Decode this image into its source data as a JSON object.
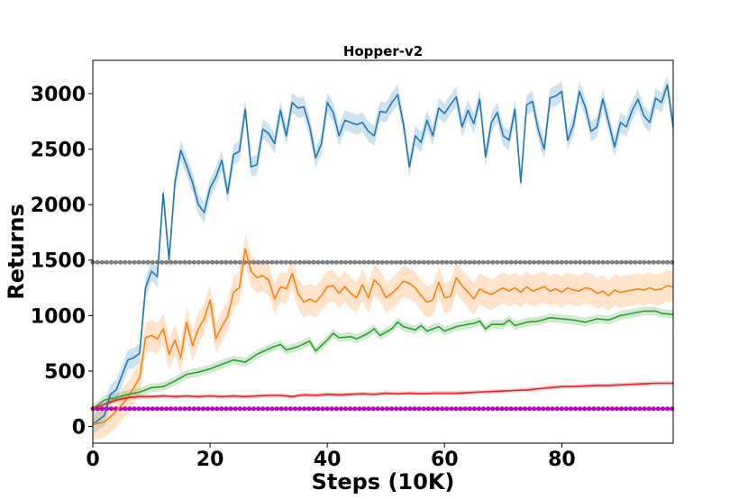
{
  "chart_data": {
    "type": "line",
    "title": "Hopper-v2",
    "xlabel": "Steps (10K)",
    "ylabel": "Returns",
    "xlim": [
      0,
      99
    ],
    "ylim": [
      -150,
      3300
    ],
    "xticks": [
      0,
      20,
      40,
      60,
      80
    ],
    "yticks": [
      0,
      500,
      1000,
      1500,
      2000,
      2500,
      3000
    ],
    "grid": false,
    "legend": null,
    "reference_lines": [
      {
        "name": "gray-baseline",
        "y": 1480,
        "color": "#7f7f7f"
      },
      {
        "name": "magenta-baseline",
        "y": 160,
        "color": "#bf00bf"
      }
    ],
    "series": [
      {
        "name": "blue",
        "color": "#1f77b4",
        "shade": 90,
        "keypoints": [
          [
            0,
            20
          ],
          [
            2,
            100
          ],
          [
            3,
            290
          ],
          [
            4,
            330
          ],
          [
            6,
            600
          ],
          [
            7,
            620
          ],
          [
            8,
            660
          ],
          [
            9,
            1250
          ],
          [
            10,
            1400
          ],
          [
            11,
            1350
          ],
          [
            12,
            2100
          ],
          [
            13,
            1500
          ],
          [
            14,
            2200
          ],
          [
            15,
            2490
          ],
          [
            16,
            2350
          ],
          [
            17,
            2200
          ],
          [
            18,
            2000
          ],
          [
            19,
            1930
          ],
          [
            20,
            2150
          ],
          [
            21,
            2250
          ],
          [
            22,
            2400
          ],
          [
            23,
            2100
          ],
          [
            24,
            2450
          ],
          [
            25,
            2480
          ],
          [
            26,
            2860
          ],
          [
            27,
            2340
          ],
          [
            28,
            2360
          ],
          [
            29,
            2680
          ],
          [
            30,
            2640
          ],
          [
            31,
            2550
          ],
          [
            32,
            2850
          ],
          [
            33,
            2620
          ],
          [
            34,
            2920
          ],
          [
            35,
            2870
          ],
          [
            36,
            2880
          ],
          [
            37,
            2700
          ],
          [
            38,
            2420
          ],
          [
            39,
            2550
          ],
          [
            40,
            2920
          ],
          [
            41,
            2830
          ],
          [
            42,
            2620
          ],
          [
            43,
            2760
          ],
          [
            44,
            2740
          ],
          [
            45,
            2720
          ],
          [
            46,
            2740
          ],
          [
            47,
            2660
          ],
          [
            48,
            2620
          ],
          [
            49,
            2840
          ],
          [
            50,
            2830
          ],
          [
            51,
            2920
          ],
          [
            52,
            2990
          ],
          [
            53,
            2720
          ],
          [
            54,
            2340
          ],
          [
            55,
            2620
          ],
          [
            56,
            2560
          ],
          [
            57,
            2760
          ],
          [
            58,
            2620
          ],
          [
            59,
            2870
          ],
          [
            60,
            2820
          ],
          [
            61,
            2900
          ],
          [
            62,
            2970
          ],
          [
            63,
            2700
          ],
          [
            64,
            2850
          ],
          [
            65,
            2730
          ],
          [
            66,
            2950
          ],
          [
            67,
            2430
          ],
          [
            68,
            2740
          ],
          [
            69,
            2830
          ],
          [
            70,
            2620
          ],
          [
            71,
            2580
          ],
          [
            72,
            2860
          ],
          [
            73,
            2200
          ],
          [
            74,
            2900
          ],
          [
            75,
            2930
          ],
          [
            76,
            2670
          ],
          [
            77,
            2500
          ],
          [
            78,
            2960
          ],
          [
            79,
            2980
          ],
          [
            80,
            3020
          ],
          [
            81,
            2580
          ],
          [
            82,
            2720
          ],
          [
            83,
            3020
          ],
          [
            84,
            2880
          ],
          [
            85,
            2660
          ],
          [
            86,
            2700
          ],
          [
            87,
            2950
          ],
          [
            88,
            2740
          ],
          [
            89,
            2520
          ],
          [
            90,
            2740
          ],
          [
            91,
            2700
          ],
          [
            92,
            2850
          ],
          [
            93,
            2950
          ],
          [
            94,
            2800
          ],
          [
            95,
            2740
          ],
          [
            96,
            2960
          ],
          [
            97,
            2920
          ],
          [
            98,
            3080
          ],
          [
            99,
            2700
          ]
        ]
      },
      {
        "name": "orange",
        "color": "#ff7f0e",
        "shade": 140,
        "keypoints": [
          [
            0,
            20
          ],
          [
            2,
            40
          ],
          [
            4,
            140
          ],
          [
            6,
            260
          ],
          [
            8,
            440
          ],
          [
            9,
            800
          ],
          [
            10,
            820
          ],
          [
            11,
            790
          ],
          [
            12,
            880
          ],
          [
            13,
            650
          ],
          [
            14,
            780
          ],
          [
            15,
            620
          ],
          [
            16,
            940
          ],
          [
            17,
            730
          ],
          [
            18,
            880
          ],
          [
            19,
            970
          ],
          [
            20,
            1140
          ],
          [
            21,
            790
          ],
          [
            22,
            900
          ],
          [
            23,
            990
          ],
          [
            24,
            1210
          ],
          [
            25,
            1250
          ],
          [
            26,
            1600
          ],
          [
            27,
            1400
          ],
          [
            28,
            1340
          ],
          [
            29,
            1360
          ],
          [
            30,
            1320
          ],
          [
            31,
            1150
          ],
          [
            32,
            1260
          ],
          [
            33,
            1240
          ],
          [
            34,
            1380
          ],
          [
            35,
            1200
          ],
          [
            36,
            1120
          ],
          [
            37,
            1150
          ],
          [
            38,
            1120
          ],
          [
            39,
            1180
          ],
          [
            40,
            1260
          ],
          [
            41,
            1270
          ],
          [
            42,
            1200
          ],
          [
            43,
            1260
          ],
          [
            44,
            1200
          ],
          [
            45,
            1160
          ],
          [
            46,
            1280
          ],
          [
            47,
            1160
          ],
          [
            48,
            1320
          ],
          [
            49,
            1270
          ],
          [
            50,
            1160
          ],
          [
            51,
            1200
          ],
          [
            52,
            1250
          ],
          [
            53,
            1310
          ],
          [
            54,
            1290
          ],
          [
            55,
            1250
          ],
          [
            56,
            1180
          ],
          [
            57,
            1120
          ],
          [
            58,
            1140
          ],
          [
            59,
            1300
          ],
          [
            60,
            1160
          ],
          [
            61,
            1170
          ],
          [
            62,
            1340
          ],
          [
            63,
            1270
          ],
          [
            64,
            1210
          ],
          [
            65,
            1150
          ],
          [
            66,
            1240
          ],
          [
            67,
            1210
          ],
          [
            68,
            1190
          ],
          [
            69,
            1220
          ],
          [
            70,
            1250
          ],
          [
            71,
            1220
          ],
          [
            72,
            1250
          ],
          [
            73,
            1210
          ],
          [
            74,
            1260
          ],
          [
            75,
            1220
          ],
          [
            76,
            1240
          ],
          [
            77,
            1260
          ],
          [
            78,
            1220
          ],
          [
            79,
            1240
          ],
          [
            80,
            1210
          ],
          [
            81,
            1250
          ],
          [
            82,
            1230
          ],
          [
            83,
            1220
          ],
          [
            84,
            1250
          ],
          [
            85,
            1240
          ],
          [
            86,
            1200
          ],
          [
            87,
            1220
          ],
          [
            88,
            1180
          ],
          [
            89,
            1230
          ],
          [
            90,
            1210
          ],
          [
            91,
            1220
          ],
          [
            92,
            1230
          ],
          [
            93,
            1240
          ],
          [
            94,
            1230
          ],
          [
            95,
            1250
          ],
          [
            96,
            1230
          ],
          [
            97,
            1240
          ],
          [
            98,
            1270
          ],
          [
            99,
            1260
          ]
        ]
      },
      {
        "name": "green",
        "color": "#2ca02c",
        "shade": 40,
        "keypoints": [
          [
            0,
            160
          ],
          [
            2,
            240
          ],
          [
            4,
            260
          ],
          [
            6,
            290
          ],
          [
            8,
            310
          ],
          [
            10,
            350
          ],
          [
            12,
            360
          ],
          [
            14,
            410
          ],
          [
            16,
            470
          ],
          [
            18,
            490
          ],
          [
            20,
            520
          ],
          [
            22,
            560
          ],
          [
            24,
            600
          ],
          [
            26,
            580
          ],
          [
            28,
            650
          ],
          [
            30,
            700
          ],
          [
            32,
            740
          ],
          [
            33,
            690
          ],
          [
            35,
            720
          ],
          [
            37,
            770
          ],
          [
            38,
            680
          ],
          [
            40,
            780
          ],
          [
            41,
            840
          ],
          [
            42,
            800
          ],
          [
            44,
            810
          ],
          [
            45,
            790
          ],
          [
            47,
            840
          ],
          [
            48,
            880
          ],
          [
            49,
            820
          ],
          [
            51,
            880
          ],
          [
            52,
            940
          ],
          [
            53,
            900
          ],
          [
            55,
            870
          ],
          [
            56,
            910
          ],
          [
            57,
            860
          ],
          [
            59,
            900
          ],
          [
            60,
            860
          ],
          [
            62,
            900
          ],
          [
            64,
            920
          ],
          [
            65,
            930
          ],
          [
            66,
            950
          ],
          [
            67,
            880
          ],
          [
            68,
            920
          ],
          [
            70,
            920
          ],
          [
            71,
            960
          ],
          [
            72,
            910
          ],
          [
            74,
            940
          ],
          [
            76,
            950
          ],
          [
            78,
            980
          ],
          [
            80,
            970
          ],
          [
            82,
            960
          ],
          [
            84,
            940
          ],
          [
            86,
            970
          ],
          [
            88,
            960
          ],
          [
            90,
            1000
          ],
          [
            92,
            1020
          ],
          [
            94,
            1040
          ],
          [
            96,
            1040
          ],
          [
            97,
            1020
          ],
          [
            99,
            1010
          ]
        ]
      },
      {
        "name": "red",
        "color": "#d62728",
        "shade": 20,
        "keypoints": [
          [
            0,
            160
          ],
          [
            2,
            200
          ],
          [
            4,
            240
          ],
          [
            6,
            260
          ],
          [
            8,
            270
          ],
          [
            10,
            270
          ],
          [
            12,
            275
          ],
          [
            14,
            270
          ],
          [
            16,
            275
          ],
          [
            18,
            270
          ],
          [
            20,
            275
          ],
          [
            22,
            270
          ],
          [
            24,
            275
          ],
          [
            26,
            270
          ],
          [
            28,
            275
          ],
          [
            30,
            280
          ],
          [
            32,
            280
          ],
          [
            34,
            270
          ],
          [
            36,
            285
          ],
          [
            38,
            280
          ],
          [
            40,
            290
          ],
          [
            42,
            285
          ],
          [
            44,
            290
          ],
          [
            46,
            295
          ],
          [
            48,
            290
          ],
          [
            50,
            300
          ],
          [
            52,
            295
          ],
          [
            54,
            300
          ],
          [
            56,
            295
          ],
          [
            58,
            300
          ],
          [
            60,
            300
          ],
          [
            62,
            300
          ],
          [
            64,
            305
          ],
          [
            66,
            310
          ],
          [
            68,
            315
          ],
          [
            70,
            320
          ],
          [
            72,
            325
          ],
          [
            74,
            330
          ],
          [
            76,
            340
          ],
          [
            78,
            350
          ],
          [
            80,
            360
          ],
          [
            82,
            360
          ],
          [
            84,
            365
          ],
          [
            86,
            370
          ],
          [
            88,
            370
          ],
          [
            90,
            375
          ],
          [
            92,
            380
          ],
          [
            94,
            385
          ],
          [
            96,
            390
          ],
          [
            98,
            390
          ],
          [
            99,
            390
          ]
        ]
      }
    ]
  }
}
